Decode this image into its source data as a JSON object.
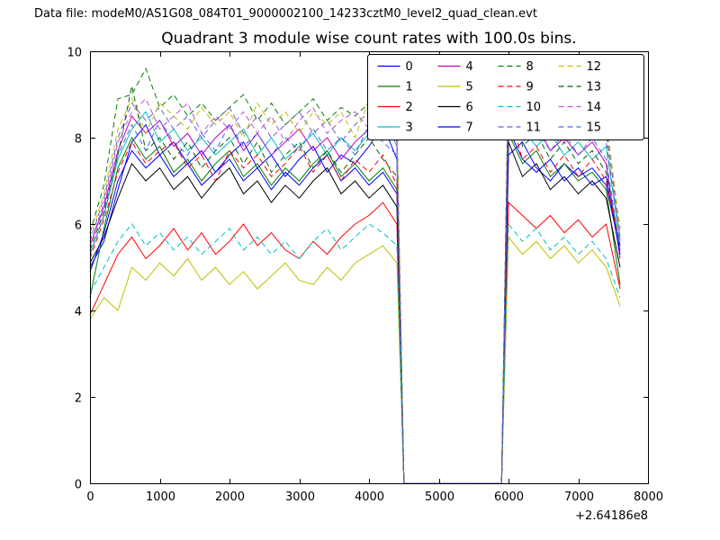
{
  "header": {
    "datafile": "Data file: modeM0/AS1G08_084T01_9000002100_14233cztM0_level2_quad_clean.evt"
  },
  "chart_data": {
    "type": "line",
    "title": "Quadrant 3 module wise count rates with 100.0s bins.",
    "xlabel": "",
    "ylabel": "",
    "xlim": [
      0,
      8000
    ],
    "ylim": [
      0,
      10
    ],
    "xticks": [
      0,
      1000,
      2000,
      3000,
      4000,
      5000,
      6000,
      7000,
      8000
    ],
    "yticks": [
      0,
      2,
      4,
      6,
      8,
      10
    ],
    "x_offset_label": "+2.64186e8",
    "grid": false,
    "legend_position": "upper right",
    "legend_columns": 4,
    "x": [
      0,
      200,
      400,
      600,
      800,
      1000,
      1200,
      1400,
      1600,
      1800,
      2000,
      2200,
      2400,
      2600,
      2800,
      3000,
      3200,
      3400,
      3600,
      3800,
      4000,
      4200,
      4400,
      4500,
      5900,
      6000,
      6200,
      6400,
      6600,
      6800,
      7000,
      7200,
      7400,
      7600
    ],
    "series": [
      {
        "name": "0",
        "color": "#0000ff",
        "linestyle": "solid",
        "values": [
          5.0,
          5.6,
          6.8,
          7.9,
          8.3,
          7.6,
          7.9,
          7.4,
          7.7,
          7.2,
          7.6,
          7.9,
          7.3,
          7.6,
          7.1,
          7.5,
          7.8,
          7.2,
          7.6,
          7.4,
          7.8,
          8.3,
          7.5,
          0,
          0,
          7.6,
          7.9,
          7.3,
          7.0,
          7.4,
          7.1,
          7.3,
          6.9,
          5.4
        ]
      },
      {
        "name": "1",
        "color": "#007f00",
        "linestyle": "solid",
        "values": [
          4.3,
          5.9,
          7.3,
          8.0,
          7.5,
          7.8,
          7.2,
          7.5,
          7.0,
          7.4,
          7.7,
          7.1,
          7.4,
          6.9,
          7.3,
          7.0,
          7.4,
          7.7,
          7.1,
          7.4,
          7.0,
          7.3,
          6.8,
          0,
          0,
          8.1,
          7.4,
          7.7,
          7.1,
          7.4,
          7.0,
          7.2,
          6.8,
          4.6
        ]
      },
      {
        "name": "2",
        "color": "#ff0000",
        "linestyle": "solid",
        "values": [
          3.9,
          4.6,
          5.3,
          5.7,
          5.2,
          5.5,
          5.9,
          5.4,
          5.8,
          5.3,
          5.6,
          6.0,
          5.5,
          5.8,
          5.4,
          5.2,
          5.6,
          5.3,
          5.7,
          6.0,
          6.2,
          6.5,
          6.0,
          0,
          0,
          6.5,
          6.2,
          5.9,
          6.2,
          5.8,
          6.1,
          5.7,
          6.0,
          4.5
        ]
      },
      {
        "name": "3",
        "color": "#00bfbf",
        "linestyle": "solid",
        "values": [
          5.3,
          6.2,
          7.5,
          8.2,
          8.6,
          7.9,
          8.2,
          7.7,
          8.0,
          7.6,
          7.9,
          8.2,
          7.6,
          8.0,
          7.5,
          7.8,
          8.1,
          7.6,
          8.0,
          7.7,
          8.1,
          8.5,
          7.8,
          0,
          0,
          9.0,
          8.2,
          7.8,
          8.1,
          7.6,
          7.9,
          7.5,
          7.8,
          5.6
        ]
      },
      {
        "name": "4",
        "color": "#bf00bf",
        "linestyle": "solid",
        "values": [
          5.5,
          6.4,
          7.7,
          8.5,
          8.1,
          8.4,
          7.8,
          8.1,
          7.6,
          8.0,
          8.3,
          7.7,
          8.1,
          7.6,
          7.9,
          8.2,
          7.7,
          8.0,
          7.5,
          7.9,
          8.2,
          8.6,
          7.9,
          0,
          0,
          8.4,
          8.0,
          8.3,
          7.7,
          8.0,
          7.6,
          7.9,
          7.4,
          5.2
        ]
      },
      {
        "name": "5",
        "color": "#bfbf00",
        "linestyle": "solid",
        "values": [
          3.8,
          4.3,
          4.0,
          5.0,
          4.7,
          5.1,
          4.8,
          5.2,
          4.7,
          5.0,
          4.6,
          4.9,
          4.5,
          4.8,
          5.1,
          4.7,
          4.6,
          5.0,
          4.7,
          5.1,
          5.3,
          5.5,
          5.1,
          0,
          0,
          5.7,
          5.3,
          5.6,
          5.2,
          5.5,
          5.1,
          5.4,
          5.0,
          4.1
        ]
      },
      {
        "name": "6",
        "color": "#000000",
        "linestyle": "solid",
        "values": [
          5.1,
          5.7,
          6.6,
          7.4,
          7.0,
          7.3,
          6.8,
          7.1,
          6.6,
          7.0,
          7.3,
          6.7,
          7.0,
          6.5,
          6.9,
          6.6,
          7.0,
          7.3,
          6.7,
          7.0,
          6.6,
          6.9,
          6.4,
          0,
          0,
          7.9,
          7.1,
          7.4,
          6.8,
          7.1,
          6.7,
          7.0,
          6.6,
          5.0
        ]
      },
      {
        "name": "7",
        "color": "#0000ff",
        "linestyle": "solid",
        "values": [
          4.9,
          5.8,
          7.0,
          7.7,
          7.3,
          7.6,
          7.1,
          7.4,
          6.9,
          7.2,
          7.5,
          7.0,
          7.3,
          6.8,
          7.2,
          6.9,
          7.3,
          7.6,
          7.0,
          7.3,
          6.9,
          7.2,
          6.7,
          0,
          0,
          8.2,
          7.5,
          7.2,
          7.5,
          7.0,
          7.3,
          6.9,
          7.1,
          5.3
        ]
      },
      {
        "name": "8",
        "color": "#007f00",
        "linestyle": "dashed",
        "values": [
          5.8,
          6.9,
          8.9,
          9.0,
          9.6,
          8.7,
          9.0,
          8.5,
          8.8,
          8.4,
          8.7,
          9.0,
          8.4,
          8.8,
          8.3,
          8.6,
          8.9,
          8.4,
          8.7,
          8.5,
          8.8,
          9.2,
          8.4,
          0,
          0,
          9.6,
          8.7,
          9.0,
          8.4,
          8.7,
          8.3,
          8.6,
          8.1,
          5.9
        ]
      },
      {
        "name": "9",
        "color": "#ff0000",
        "linestyle": "dashed",
        "values": [
          5.2,
          6.1,
          7.2,
          7.9,
          7.4,
          7.7,
          7.9,
          7.3,
          7.6,
          7.0,
          7.7,
          7.3,
          7.6,
          7.1,
          7.4,
          7.8,
          7.2,
          7.6,
          7.0,
          7.5,
          7.2,
          7.6,
          6.9,
          0,
          0,
          8.6,
          7.5,
          7.8,
          7.2,
          7.6,
          7.1,
          7.5,
          7.0,
          5.5
        ]
      },
      {
        "name": "10",
        "color": "#00bfbf",
        "linestyle": "dashed",
        "values": [
          4.4,
          5.0,
          5.6,
          6.0,
          5.5,
          5.8,
          5.4,
          5.7,
          5.3,
          5.6,
          5.9,
          5.4,
          5.7,
          5.3,
          5.6,
          5.2,
          5.6,
          5.9,
          5.4,
          5.7,
          6.0,
          5.8,
          5.5,
          0,
          0,
          6.0,
          5.6,
          5.9,
          5.4,
          5.7,
          5.3,
          5.6,
          5.2,
          4.3
        ]
      },
      {
        "name": "11",
        "color": "#6a5acd",
        "linestyle": "dashed",
        "values": [
          5.6,
          6.6,
          8.0,
          8.8,
          8.4,
          8.7,
          8.2,
          8.5,
          8.0,
          8.4,
          8.7,
          8.1,
          8.5,
          8.0,
          8.3,
          8.6,
          8.1,
          8.4,
          7.9,
          8.3,
          8.6,
          9.0,
          8.2,
          0,
          0,
          9.3,
          8.5,
          8.8,
          8.2,
          8.5,
          8.1,
          8.4,
          7.9,
          5.7
        ]
      },
      {
        "name": "12",
        "color": "#bfbf00",
        "linestyle": "dashed",
        "values": [
          5.7,
          6.7,
          8.2,
          8.9,
          8.1,
          8.8,
          8.5,
          8.2,
          8.7,
          8.3,
          8.6,
          8.0,
          8.8,
          8.3,
          8.6,
          8.1,
          8.6,
          8.3,
          8.6,
          8.0,
          8.9,
          8.5,
          8.3,
          0,
          0,
          9.1,
          8.6,
          8.3,
          8.5,
          8.0,
          8.6,
          8.1,
          8.5,
          5.8
        ]
      },
      {
        "name": "13",
        "color": "#006400",
        "linestyle": "dashed",
        "values": [
          5.4,
          6.3,
          7.6,
          9.2,
          7.7,
          8.0,
          7.5,
          7.9,
          7.3,
          7.7,
          8.0,
          7.4,
          7.9,
          7.2,
          7.6,
          7.9,
          7.3,
          7.7,
          7.2,
          7.6,
          8.0,
          7.5,
          7.1,
          0,
          0,
          9.7,
          7.8,
          8.1,
          7.5,
          7.9,
          7.4,
          7.7,
          7.2,
          5.5
        ]
      },
      {
        "name": "14",
        "color": "#ba55d3",
        "linestyle": "dashed",
        "values": [
          5.5,
          6.5,
          7.9,
          8.6,
          8.9,
          8.2,
          8.5,
          8.8,
          8.1,
          8.5,
          8.2,
          8.6,
          8.1,
          8.5,
          7.9,
          8.4,
          8.7,
          8.1,
          8.4,
          8.6,
          8.2,
          8.8,
          8.0,
          0,
          0,
          9.5,
          8.2,
          8.7,
          8.3,
          7.9,
          8.4,
          8.0,
          8.3,
          5.6
        ]
      },
      {
        "name": "15",
        "color": "#4169e1",
        "linestyle": "dashed",
        "values": [
          5.3,
          6.2,
          7.6,
          8.3,
          7.7,
          8.4,
          7.9,
          7.6,
          8.1,
          7.7,
          8.3,
          7.8,
          8.1,
          7.6,
          8.0,
          7.7,
          8.2,
          7.7,
          8.0,
          7.6,
          8.3,
          7.9,
          7.6,
          0,
          0,
          8.9,
          7.9,
          8.2,
          7.7,
          8.1,
          7.6,
          8.0,
          7.5,
          5.4
        ]
      }
    ]
  }
}
